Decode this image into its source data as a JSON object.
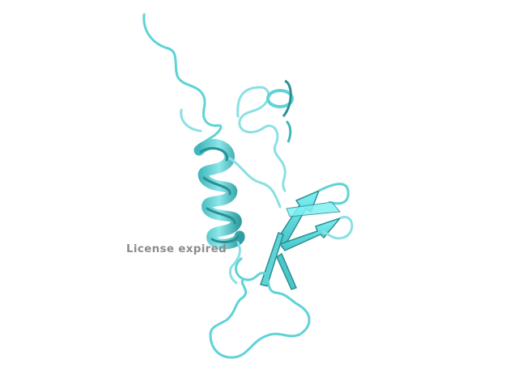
{
  "viewer": {
    "background": "#ffffff",
    "cartoon_color": "#5fd3d6",
    "cartoon_shadow": "#2a8f93",
    "watermark": "License expired"
  }
}
